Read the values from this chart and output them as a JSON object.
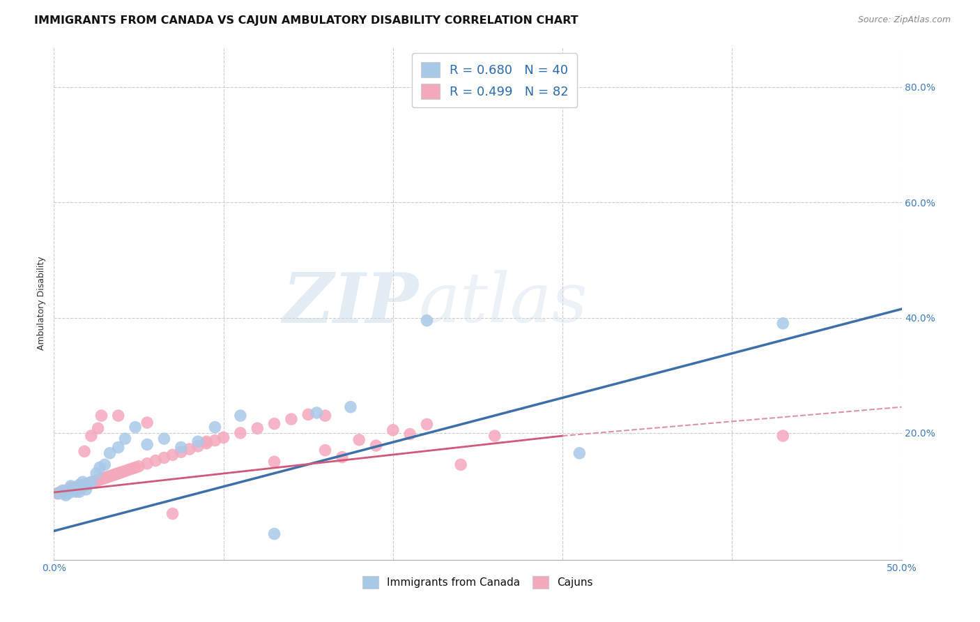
{
  "title": "IMMIGRANTS FROM CANADA VS CAJUN AMBULATORY DISABILITY CORRELATION CHART",
  "source": "Source: ZipAtlas.com",
  "ylabel": "Ambulatory Disability",
  "xlim": [
    0.0,
    0.5
  ],
  "ylim": [
    -0.02,
    0.87
  ],
  "ytick_vals": [
    0.2,
    0.4,
    0.6,
    0.8
  ],
  "xtick_vals": [
    0.0,
    0.1,
    0.2,
    0.3,
    0.4,
    0.5
  ],
  "blue_color": "#a8c8e8",
  "pink_color": "#f4a8bc",
  "blue_line_color": "#3d6fa8",
  "pink_line_color": "#d05878",
  "pink_dash_color": "#e090a8",
  "watermark_zip": "ZIP",
  "watermark_atlas": "atlas",
  "background_color": "#ffffff",
  "grid_color": "#cccccc",
  "title_fontsize": 11.5,
  "axis_label_fontsize": 9,
  "tick_fontsize": 10,
  "source_fontsize": 9,
  "legend1_label": "R = 0.680   N = 40",
  "legend2_label": "R = 0.499   N = 82",
  "bottom_legend1": "Immigrants from Canada",
  "bottom_legend2": "Cajuns",
  "blue_scatter_x": [
    0.003,
    0.005,
    0.006,
    0.007,
    0.008,
    0.009,
    0.01,
    0.01,
    0.011,
    0.012,
    0.013,
    0.013,
    0.014,
    0.015,
    0.015,
    0.016,
    0.017,
    0.018,
    0.019,
    0.02,
    0.022,
    0.025,
    0.027,
    0.03,
    0.033,
    0.038,
    0.042,
    0.048,
    0.055,
    0.065,
    0.075,
    0.085,
    0.095,
    0.11,
    0.13,
    0.155,
    0.175,
    0.22,
    0.31,
    0.43
  ],
  "blue_scatter_y": [
    0.095,
    0.1,
    0.095,
    0.092,
    0.098,
    0.096,
    0.1,
    0.108,
    0.102,
    0.1,
    0.105,
    0.098,
    0.103,
    0.11,
    0.098,
    0.105,
    0.115,
    0.108,
    0.102,
    0.11,
    0.115,
    0.13,
    0.14,
    0.145,
    0.165,
    0.175,
    0.19,
    0.21,
    0.18,
    0.19,
    0.175,
    0.185,
    0.21,
    0.23,
    0.025,
    0.235,
    0.245,
    0.395,
    0.165,
    0.39
  ],
  "pink_scatter_x": [
    0.002,
    0.003,
    0.004,
    0.005,
    0.006,
    0.007,
    0.008,
    0.009,
    0.01,
    0.01,
    0.011,
    0.012,
    0.013,
    0.013,
    0.014,
    0.015,
    0.015,
    0.016,
    0.017,
    0.018,
    0.019,
    0.02,
    0.021,
    0.022,
    0.023,
    0.024,
    0.025,
    0.026,
    0.027,
    0.028,
    0.029,
    0.03,
    0.031,
    0.032,
    0.033,
    0.034,
    0.035,
    0.036,
    0.037,
    0.038,
    0.039,
    0.04,
    0.042,
    0.044,
    0.046,
    0.048,
    0.05,
    0.055,
    0.06,
    0.065,
    0.07,
    0.075,
    0.08,
    0.085,
    0.09,
    0.095,
    0.1,
    0.11,
    0.12,
    0.13,
    0.14,
    0.15,
    0.16,
    0.17,
    0.18,
    0.19,
    0.2,
    0.21,
    0.22,
    0.24,
    0.26,
    0.028,
    0.018,
    0.022,
    0.026,
    0.038,
    0.055,
    0.07,
    0.09,
    0.13,
    0.16,
    0.43
  ],
  "pink_scatter_y": [
    0.095,
    0.096,
    0.097,
    0.098,
    0.099,
    0.1,
    0.1,
    0.101,
    0.102,
    0.105,
    0.103,
    0.104,
    0.105,
    0.104,
    0.106,
    0.107,
    0.103,
    0.108,
    0.109,
    0.11,
    0.111,
    0.112,
    0.113,
    0.114,
    0.115,
    0.116,
    0.117,
    0.118,
    0.119,
    0.12,
    0.121,
    0.122,
    0.123,
    0.124,
    0.125,
    0.126,
    0.127,
    0.128,
    0.129,
    0.13,
    0.131,
    0.132,
    0.134,
    0.136,
    0.138,
    0.14,
    0.142,
    0.147,
    0.152,
    0.157,
    0.162,
    0.167,
    0.172,
    0.177,
    0.182,
    0.187,
    0.192,
    0.2,
    0.208,
    0.216,
    0.224,
    0.232,
    0.17,
    0.158,
    0.188,
    0.178,
    0.205,
    0.198,
    0.215,
    0.145,
    0.195,
    0.23,
    0.168,
    0.195,
    0.208,
    0.23,
    0.218,
    0.06,
    0.185,
    0.15,
    0.23,
    0.195
  ],
  "blue_trend": [
    0.0,
    0.5,
    0.03,
    0.415
  ],
  "pink_solid_trend": [
    0.0,
    0.3,
    0.097,
    0.195
  ],
  "pink_dash_trend": [
    0.3,
    0.5,
    0.195,
    0.245
  ]
}
